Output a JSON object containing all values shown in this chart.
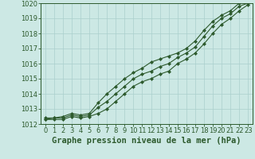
{
  "x": [
    0,
    1,
    2,
    3,
    4,
    5,
    6,
    7,
    8,
    9,
    10,
    11,
    12,
    13,
    14,
    15,
    16,
    17,
    18,
    19,
    20,
    21,
    22,
    23
  ],
  "y_min": [
    1012.3,
    1012.3,
    1012.3,
    1012.5,
    1012.4,
    1012.5,
    1012.7,
    1013.0,
    1013.5,
    1014.0,
    1014.5,
    1014.8,
    1015.0,
    1015.3,
    1015.5,
    1016.0,
    1016.3,
    1016.7,
    1017.3,
    1018.0,
    1018.6,
    1019.0,
    1019.5,
    1019.9
  ],
  "y_avg": [
    1012.3,
    1012.4,
    1012.4,
    1012.6,
    1012.5,
    1012.6,
    1013.1,
    1013.5,
    1014.0,
    1014.5,
    1015.0,
    1015.3,
    1015.5,
    1015.8,
    1016.0,
    1016.4,
    1016.7,
    1017.1,
    1017.8,
    1018.5,
    1019.0,
    1019.3,
    1019.8,
    1020.0
  ],
  "y_max": [
    1012.4,
    1012.4,
    1012.5,
    1012.7,
    1012.6,
    1012.7,
    1013.4,
    1014.0,
    1014.5,
    1015.0,
    1015.4,
    1015.7,
    1016.1,
    1016.3,
    1016.5,
    1016.7,
    1017.0,
    1017.5,
    1018.2,
    1018.8,
    1019.2,
    1019.5,
    1020.0,
    1020.1
  ],
  "line_color": "#2d5a2d",
  "bg_color": "#cce8e4",
  "grid_color": "#aacfcc",
  "title": "Graphe pression niveau de la mer (hPa)",
  "ylim": [
    1012,
    1020
  ],
  "xlim": [
    -0.5,
    23.5
  ],
  "yticks": [
    1012,
    1013,
    1014,
    1015,
    1016,
    1017,
    1018,
    1019,
    1020
  ],
  "xticks": [
    0,
    1,
    2,
    3,
    4,
    5,
    6,
    7,
    8,
    9,
    10,
    11,
    12,
    13,
    14,
    15,
    16,
    17,
    18,
    19,
    20,
    21,
    22,
    23
  ],
  "title_fontsize": 7.5,
  "tick_fontsize": 6,
  "marker": "D",
  "markersize": 2,
  "linewidth": 0.8
}
